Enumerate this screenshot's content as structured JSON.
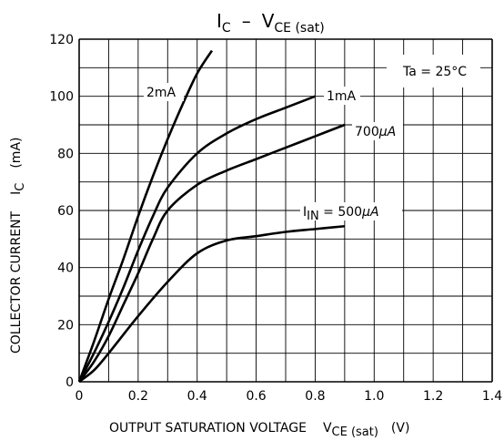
{
  "chart_data": {
    "type": "line",
    "title": {
      "main": "I",
      "sub": "C",
      "sep": "–",
      "main2": "V",
      "sub2": "CE (sat)"
    },
    "condition": "Ta = 25°C",
    "xlabel": {
      "text": "OUTPUT  SATURATION VOLTAGE",
      "sym": "V",
      "sub": "CE (sat)",
      "unit": "(V)"
    },
    "ylabel": {
      "text": "COLLECTOR  CURRENT",
      "sym": "I",
      "sub": "C",
      "unit": "(mA)"
    },
    "xlim": [
      0,
      1.4
    ],
    "ylim": [
      0,
      120
    ],
    "x_ticks": [
      "0",
      "0.2",
      "0.4",
      "0.6",
      "0.8",
      "1.0",
      "1.2",
      "1.4"
    ],
    "y_ticks": [
      "0",
      "20",
      "40",
      "60",
      "80",
      "100",
      "120"
    ],
    "grid": true,
    "series": [
      {
        "name": "2mA",
        "x": [
          0,
          0.05,
          0.1,
          0.15,
          0.2,
          0.25,
          0.3,
          0.35,
          0.4,
          0.45
        ],
        "y": [
          0,
          14,
          29,
          43,
          58,
          72,
          85,
          97,
          108,
          116
        ]
      },
      {
        "name": "1mA",
        "x": [
          0,
          0.05,
          0.1,
          0.15,
          0.2,
          0.25,
          0.3,
          0.4,
          0.5,
          0.6,
          0.7,
          0.8
        ],
        "y": [
          0,
          10,
          21,
          33,
          46,
          58,
          68,
          80,
          87,
          92,
          96,
          100
        ]
      },
      {
        "name": "700μA",
        "x": [
          0,
          0.05,
          0.1,
          0.15,
          0.2,
          0.25,
          0.3,
          0.4,
          0.5,
          0.6,
          0.7,
          0.8,
          0.9
        ],
        "y": [
          0,
          7,
          16,
          27,
          38,
          50,
          60,
          69,
          74,
          78,
          82,
          86,
          90
        ]
      },
      {
        "name": "I_IN = 500μA",
        "x": [
          0,
          0.05,
          0.1,
          0.2,
          0.3,
          0.4,
          0.5,
          0.6,
          0.7,
          0.8,
          0.9
        ],
        "y": [
          0,
          4,
          10,
          23,
          35,
          45,
          49.5,
          51,
          52.5,
          53.5,
          54.5
        ]
      }
    ],
    "annotations": {
      "s0": {
        "text": "2mA"
      },
      "s1": {
        "text": "1mA"
      },
      "s2": {
        "text": "700",
        "unit": "μA"
      },
      "s3": {
        "pre": "I",
        "sub": "IN",
        "text": " = 500",
        "unit": "μA"
      }
    }
  }
}
